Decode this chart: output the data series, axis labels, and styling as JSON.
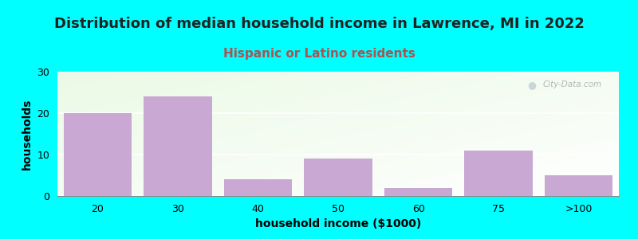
{
  "title": "Distribution of median household income in Lawrence, MI in 2022",
  "subtitle": "Hispanic or Latino residents",
  "xlabel": "household income ($1000)",
  "ylabel": "households",
  "bar_labels": [
    "20",
    "30",
    "40",
    "50",
    "60",
    "75",
    ">100"
  ],
  "bar_values": [
    20,
    24,
    4,
    9,
    2,
    11,
    5
  ],
  "bar_color": "#c9a8d4",
  "bar_edgecolor": "#c9a8d4",
  "background_color": "#00ffff",
  "ylim": [
    0,
    30
  ],
  "yticks": [
    0,
    10,
    20,
    30
  ],
  "title_fontsize": 13,
  "subtitle_fontsize": 11,
  "subtitle_color": "#b05050",
  "axis_label_fontsize": 10,
  "tick_fontsize": 9,
  "watermark_text": "City-Data.com",
  "bar_width": 0.85
}
